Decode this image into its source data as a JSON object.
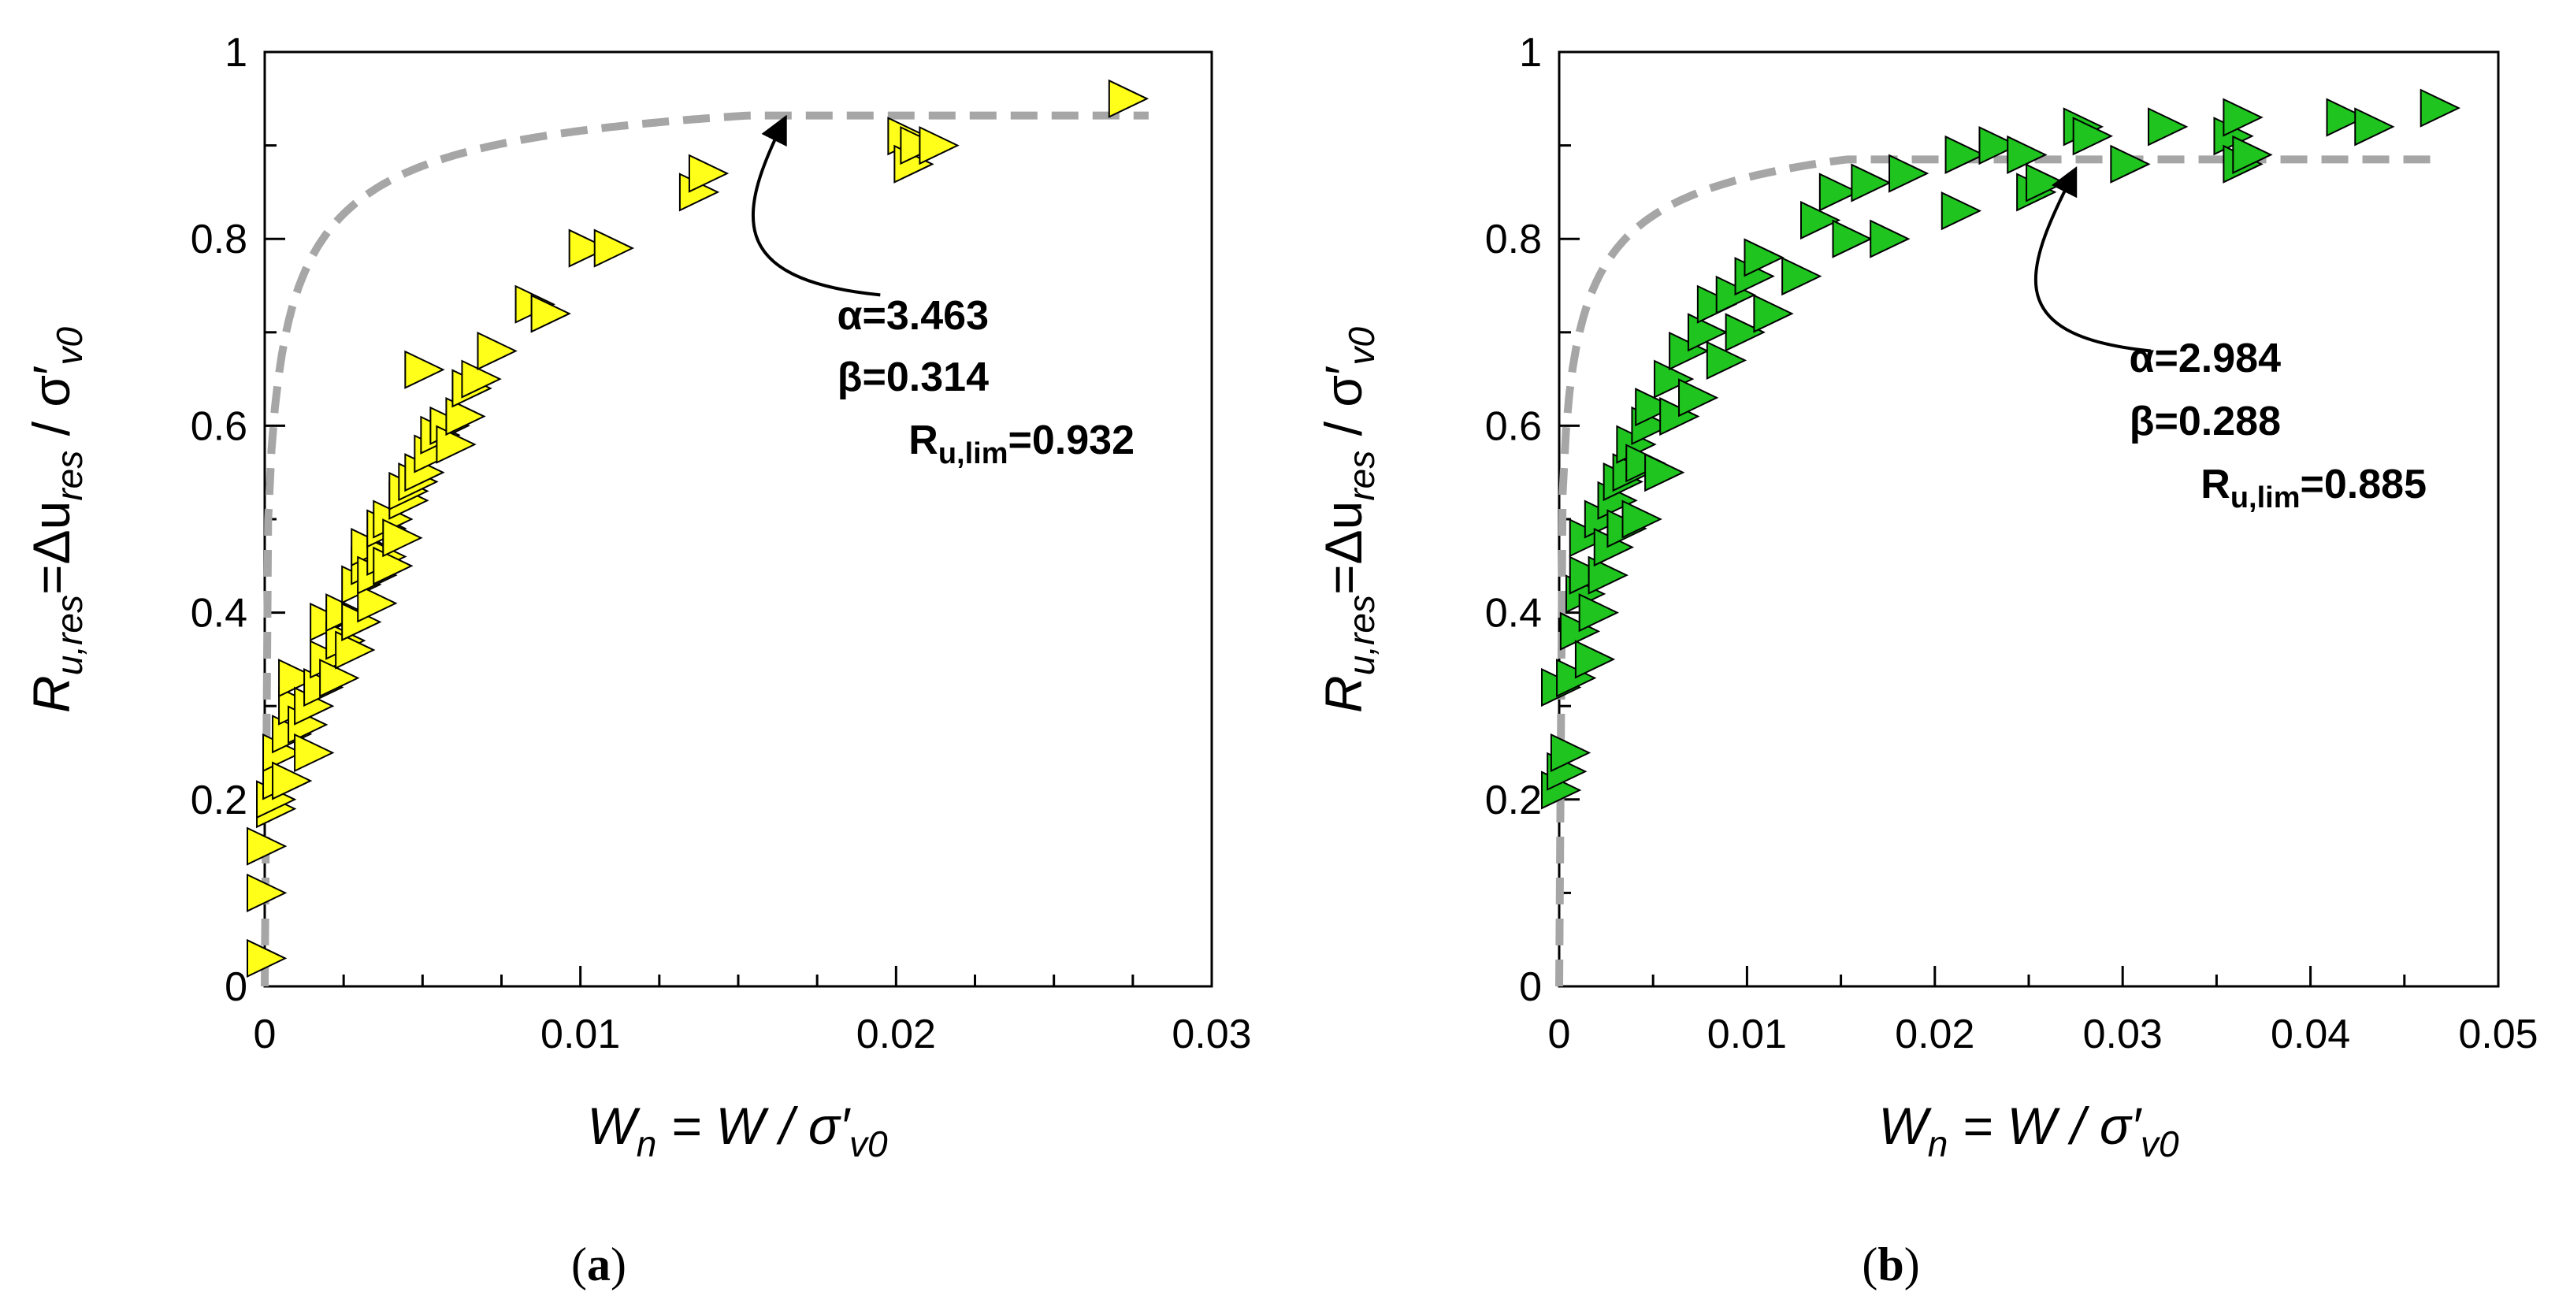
{
  "chart_data": [
    {
      "panel": "a",
      "type": "scatter",
      "caption": {
        "open": "(",
        "letter": "a",
        "close": ")"
      },
      "xlabel": {
        "main": "W",
        "sub": "n",
        "rest": " = W / σ′",
        "sub2": "v0"
      },
      "ylabel": {
        "main": "R",
        "sub": "u,res",
        "mid": "=Δu",
        "sub2": "res",
        "rest": " / σ′",
        "sub3": "v0"
      },
      "xlim": [
        0,
        0.03
      ],
      "ylim": [
        0,
        1
      ],
      "xticks": [
        "0",
        "0.01",
        "0.02",
        "0.03"
      ],
      "yticks": [
        "0",
        "0.2",
        "0.4",
        "0.6",
        "0.8",
        "1"
      ],
      "marker_color": "#FFFF1A",
      "curve_color": "#A6A6A6",
      "annotation": {
        "alpha": "α=3.463",
        "beta": "β=0.314",
        "rlim_main": "R",
        "rlim_sub": "u,lim",
        "rlim_val": "=0.932"
      },
      "fit": {
        "alpha": 3.463,
        "beta": 0.314,
        "ru_lim": 0.932,
        "x_max": 0.028
      },
      "arrow": {
        "from": [
          0.0195,
          0.74
        ],
        "to": [
          0.0165,
          0.93
        ]
      },
      "points": [
        [
          0.0,
          0.03
        ],
        [
          0.0,
          0.1
        ],
        [
          0.0,
          0.15
        ],
        [
          0.0003,
          0.19
        ],
        [
          0.0003,
          0.2
        ],
        [
          0.0005,
          0.22
        ],
        [
          0.0005,
          0.25
        ],
        [
          0.0008,
          0.22
        ],
        [
          0.0008,
          0.27
        ],
        [
          0.001,
          0.3
        ],
        [
          0.001,
          0.33
        ],
        [
          0.0013,
          0.28
        ],
        [
          0.0015,
          0.25
        ],
        [
          0.0015,
          0.3
        ],
        [
          0.0018,
          0.32
        ],
        [
          0.002,
          0.35
        ],
        [
          0.002,
          0.39
        ],
        [
          0.0023,
          0.33
        ],
        [
          0.0025,
          0.37
        ],
        [
          0.0025,
          0.4
        ],
        [
          0.0028,
          0.36
        ],
        [
          0.003,
          0.39
        ],
        [
          0.003,
          0.43
        ],
        [
          0.0033,
          0.45
        ],
        [
          0.0033,
          0.47
        ],
        [
          0.0035,
          0.41
        ],
        [
          0.0035,
          0.44
        ],
        [
          0.0038,
          0.46
        ],
        [
          0.0038,
          0.49
        ],
        [
          0.004,
          0.45
        ],
        [
          0.004,
          0.5
        ],
        [
          0.0043,
          0.48
        ],
        [
          0.0045,
          0.52
        ],
        [
          0.0045,
          0.53
        ],
        [
          0.0048,
          0.54
        ],
        [
          0.005,
          0.55
        ],
        [
          0.005,
          0.66
        ],
        [
          0.0053,
          0.57
        ],
        [
          0.0055,
          0.59
        ],
        [
          0.0058,
          0.6
        ],
        [
          0.006,
          0.58
        ],
        [
          0.0063,
          0.61
        ],
        [
          0.0065,
          0.64
        ],
        [
          0.0068,
          0.65
        ],
        [
          0.0073,
          0.68
        ],
        [
          0.0085,
          0.73
        ],
        [
          0.009,
          0.72
        ],
        [
          0.0102,
          0.79
        ],
        [
          0.011,
          0.79
        ],
        [
          0.0137,
          0.85
        ],
        [
          0.014,
          0.87
        ],
        [
          0.0203,
          0.91
        ],
        [
          0.0205,
          0.88
        ],
        [
          0.0207,
          0.9
        ],
        [
          0.0213,
          0.9
        ],
        [
          0.0273,
          0.95
        ]
      ]
    },
    {
      "panel": "b",
      "type": "scatter",
      "caption": {
        "open": "(",
        "letter": "b",
        "close": ")"
      },
      "xlabel": {
        "main": "W",
        "sub": "n",
        "rest": " = W / σ′",
        "sub2": "v0"
      },
      "ylabel": {
        "main": "R",
        "sub": "u,res",
        "mid": "=Δu",
        "sub2": "res",
        "rest": " / σ′",
        "sub3": "v0"
      },
      "xlim": [
        0,
        0.05
      ],
      "ylim": [
        0,
        1
      ],
      "xticks": [
        "0",
        "0.01",
        "0.02",
        "0.03",
        "0.04",
        "0.05"
      ],
      "yticks": [
        "0",
        "0.2",
        "0.4",
        "0.6",
        "0.8",
        "1"
      ],
      "marker_color": "#1FC41F",
      "curve_color": "#A6A6A6",
      "annotation": {
        "alpha": "α=2.984",
        "beta": "β=0.288",
        "rlim_main": "R",
        "rlim_sub": "u,lim",
        "rlim_val": "=0.885"
      },
      "fit": {
        "alpha": 2.984,
        "beta": 0.288,
        "ru_lim": 0.885,
        "x_max": 0.047
      },
      "arrow": {
        "from": [
          0.0315,
          0.68
        ],
        "to": [
          0.0275,
          0.875
        ]
      },
      "points": [
        [
          0.0,
          0.21
        ],
        [
          0.0,
          0.32
        ],
        [
          0.0003,
          0.23
        ],
        [
          0.0005,
          0.25
        ],
        [
          0.0008,
          0.33
        ],
        [
          0.001,
          0.38
        ],
        [
          0.0013,
          0.42
        ],
        [
          0.0015,
          0.44
        ],
        [
          0.0015,
          0.48
        ],
        [
          0.0018,
          0.35
        ],
        [
          0.002,
          0.4
        ],
        [
          0.0023,
          0.5
        ],
        [
          0.0025,
          0.44
        ],
        [
          0.0028,
          0.47
        ],
        [
          0.003,
          0.52
        ],
        [
          0.0033,
          0.54
        ],
        [
          0.0035,
          0.49
        ],
        [
          0.0038,
          0.55
        ],
        [
          0.004,
          0.58
        ],
        [
          0.0043,
          0.5
        ],
        [
          0.0045,
          0.56
        ],
        [
          0.0048,
          0.6
        ],
        [
          0.005,
          0.62
        ],
        [
          0.0055,
          0.55
        ],
        [
          0.006,
          0.65
        ],
        [
          0.0063,
          0.61
        ],
        [
          0.0068,
          0.68
        ],
        [
          0.0073,
          0.63
        ],
        [
          0.0078,
          0.7
        ],
        [
          0.0083,
          0.73
        ],
        [
          0.0088,
          0.67
        ],
        [
          0.0093,
          0.74
        ],
        [
          0.0098,
          0.7
        ],
        [
          0.0103,
          0.76
        ],
        [
          0.0108,
          0.78
        ],
        [
          0.0113,
          0.72
        ],
        [
          0.0128,
          0.76
        ],
        [
          0.0138,
          0.82
        ],
        [
          0.0148,
          0.85
        ],
        [
          0.0155,
          0.8
        ],
        [
          0.0165,
          0.86
        ],
        [
          0.0175,
          0.8
        ],
        [
          0.0185,
          0.87
        ],
        [
          0.0213,
          0.83
        ],
        [
          0.0215,
          0.89
        ],
        [
          0.0233,
          0.9
        ],
        [
          0.0248,
          0.89
        ],
        [
          0.0253,
          0.85
        ],
        [
          0.0258,
          0.86
        ],
        [
          0.0278,
          0.92
        ],
        [
          0.0283,
          0.91
        ],
        [
          0.0303,
          0.88
        ],
        [
          0.0323,
          0.92
        ],
        [
          0.0358,
          0.91
        ],
        [
          0.0363,
          0.93
        ],
        [
          0.0363,
          0.88
        ],
        [
          0.0368,
          0.89
        ],
        [
          0.0418,
          0.93
        ],
        [
          0.0433,
          0.92
        ],
        [
          0.0468,
          0.94
        ]
      ]
    }
  ]
}
